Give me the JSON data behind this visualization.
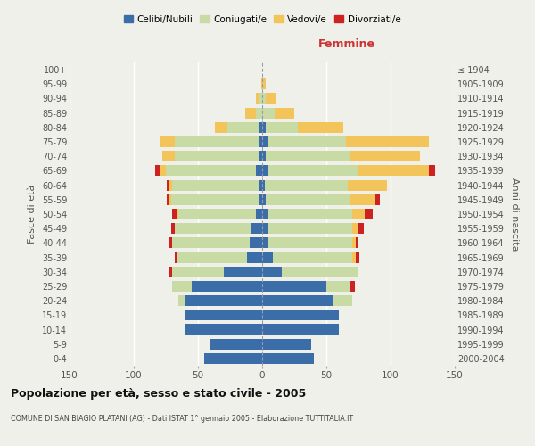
{
  "age_groups": [
    "0-4",
    "5-9",
    "10-14",
    "15-19",
    "20-24",
    "25-29",
    "30-34",
    "35-39",
    "40-44",
    "45-49",
    "50-54",
    "55-59",
    "60-64",
    "65-69",
    "70-74",
    "75-79",
    "80-84",
    "85-89",
    "90-94",
    "95-99",
    "100+"
  ],
  "birth_years": [
    "2000-2004",
    "1995-1999",
    "1990-1994",
    "1985-1989",
    "1980-1984",
    "1975-1979",
    "1970-1974",
    "1965-1969",
    "1960-1964",
    "1955-1959",
    "1950-1954",
    "1945-1949",
    "1940-1944",
    "1935-1939",
    "1930-1934",
    "1925-1929",
    "1920-1924",
    "1915-1919",
    "1910-1914",
    "1905-1909",
    "≤ 1904"
  ],
  "colors": {
    "celibi": "#3b6da8",
    "coniugati": "#c8dba4",
    "vedovi": "#f2c45a",
    "divorziati": "#cc2222"
  },
  "males": {
    "celibi": [
      45,
      40,
      60,
      60,
      60,
      55,
      30,
      12,
      10,
      8,
      5,
      3,
      2,
      5,
      3,
      3,
      2,
      0,
      0,
      0,
      0
    ],
    "coniugati": [
      0,
      0,
      0,
      0,
      5,
      15,
      40,
      55,
      60,
      60,
      60,
      68,
      68,
      70,
      65,
      65,
      25,
      5,
      2,
      0,
      0
    ],
    "vedovi": [
      0,
      0,
      0,
      0,
      0,
      0,
      0,
      0,
      0,
      0,
      2,
      2,
      2,
      5,
      10,
      12,
      10,
      8,
      3,
      1,
      0
    ],
    "divorziati": [
      0,
      0,
      0,
      0,
      0,
      0,
      2,
      1,
      3,
      3,
      3,
      1,
      2,
      3,
      0,
      0,
      0,
      0,
      0,
      0,
      0
    ]
  },
  "females": {
    "nubili": [
      40,
      38,
      60,
      60,
      55,
      50,
      15,
      8,
      5,
      5,
      5,
      3,
      2,
      5,
      3,
      5,
      3,
      0,
      0,
      0,
      0
    ],
    "coniugate": [
      0,
      0,
      0,
      0,
      15,
      18,
      60,
      62,
      65,
      65,
      65,
      65,
      65,
      70,
      65,
      60,
      25,
      10,
      3,
      1,
      0
    ],
    "vedove": [
      0,
      0,
      0,
      0,
      0,
      0,
      0,
      3,
      3,
      5,
      10,
      20,
      30,
      55,
      55,
      65,
      35,
      15,
      8,
      2,
      0
    ],
    "divorziate": [
      0,
      0,
      0,
      0,
      0,
      4,
      0,
      3,
      2,
      4,
      6,
      4,
      0,
      5,
      0,
      0,
      0,
      0,
      0,
      0,
      0
    ]
  },
  "xlim": 150,
  "title": "Popolazione per età, sesso e stato civile - 2005",
  "subtitle": "COMUNE DI SAN BIAGIO PLATANI (AG) - Dati ISTAT 1° gennaio 2005 - Elaborazione TUTTITALIA.IT",
  "ylabel_left": "Fasce di età",
  "ylabel_right": "Anni di nascita",
  "xlabel_right": "Femmine",
  "legend_labels": [
    "Celibi/Nubili",
    "Coniugati/e",
    "Vedovi/e",
    "Divorziati/e"
  ],
  "background_color": "#f0f0eb",
  "bar_height": 0.75
}
